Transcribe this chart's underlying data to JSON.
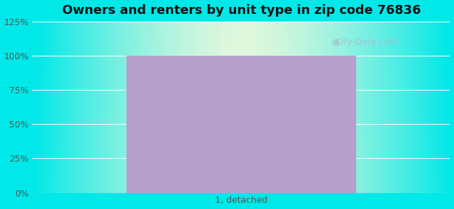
{
  "title": "Owners and renters by unit type in zip code 76836",
  "categories": [
    "1, detached"
  ],
  "values": [
    100
  ],
  "bar_color": "#b8a0cc",
  "bar_width": 0.55,
  "ylim": [
    0,
    125
  ],
  "yticks": [
    0,
    25,
    50,
    75,
    100,
    125
  ],
  "ytick_labels": [
    "0%",
    "25%",
    "50%",
    "75%",
    "100%",
    "125%"
  ],
  "title_fontsize": 13,
  "tick_fontsize": 9,
  "xlabel_fontsize": 9,
  "bg_outer_color": "#00e8e8",
  "bg_inner_color_r": 230,
  "bg_inner_color_g": 248,
  "bg_inner_color_b": 220,
  "watermark_text": "City-Data.com",
  "watermark_color": "#aabccc",
  "grid_color": "#ddeeee"
}
